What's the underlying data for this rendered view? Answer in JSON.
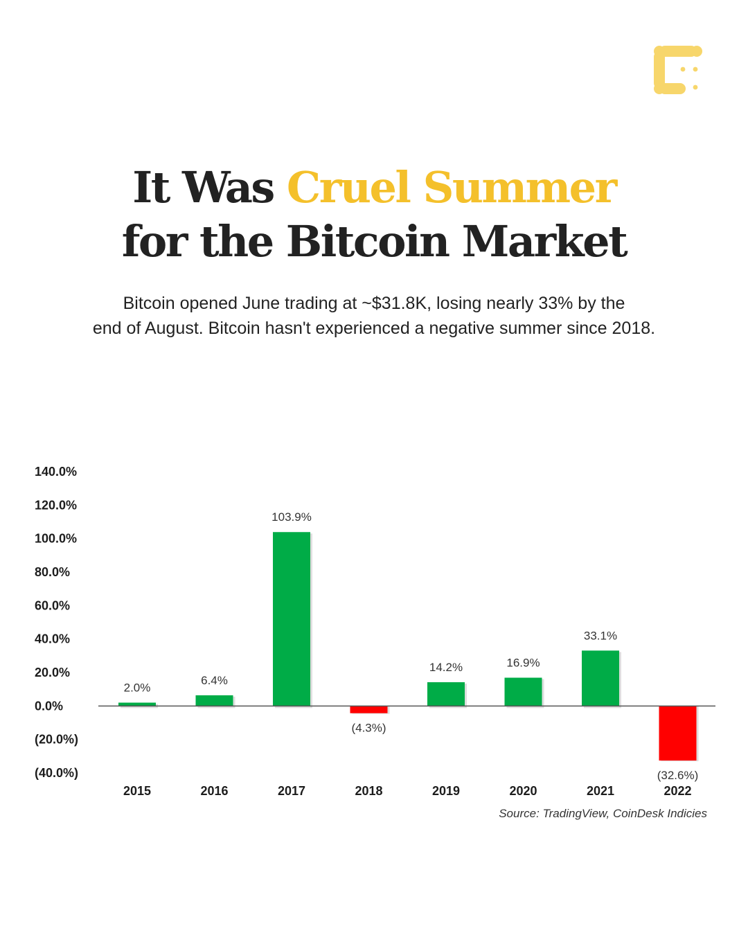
{
  "headline": {
    "prefix": "It Was ",
    "accent": "Cruel Summer",
    "line2": "for the Bitcoin Market"
  },
  "subtitle": {
    "line1": "Bitcoin opened June trading at ~$31.8K, losing nearly 33% by the",
    "line2": "end of August. Bitcoin hasn't experienced a negative summer since 2018."
  },
  "colors": {
    "accent": "#f4c02b",
    "positive": "#00ac47",
    "negative": "#ff0000",
    "text": "#222222"
  },
  "chart_data": {
    "type": "bar",
    "categories": [
      "2015",
      "2016",
      "2017",
      "2018",
      "2019",
      "2020",
      "2021",
      "2022"
    ],
    "values": [
      2.0,
      6.4,
      103.9,
      -4.3,
      14.2,
      16.9,
      33.1,
      -32.6
    ],
    "value_labels": [
      "2.0%",
      "6.4%",
      "103.9%",
      "(4.3%)",
      "14.2%",
      "16.9%",
      "33.1%",
      "(32.6%)"
    ],
    "ylim": [
      -40,
      140
    ],
    "yticks": [
      140,
      120,
      100,
      80,
      60,
      40,
      20,
      0,
      -20,
      -40
    ],
    "ytick_labels": [
      "140.0%",
      "120.0%",
      "100.0%",
      "80.0%",
      "60.0%",
      "40.0%",
      "20.0%",
      "0.0%",
      "(20.0%)",
      "(40.0%)"
    ],
    "grid": false,
    "legend": "none"
  },
  "source": "Source: TradingView, CoinDesk Indicies"
}
